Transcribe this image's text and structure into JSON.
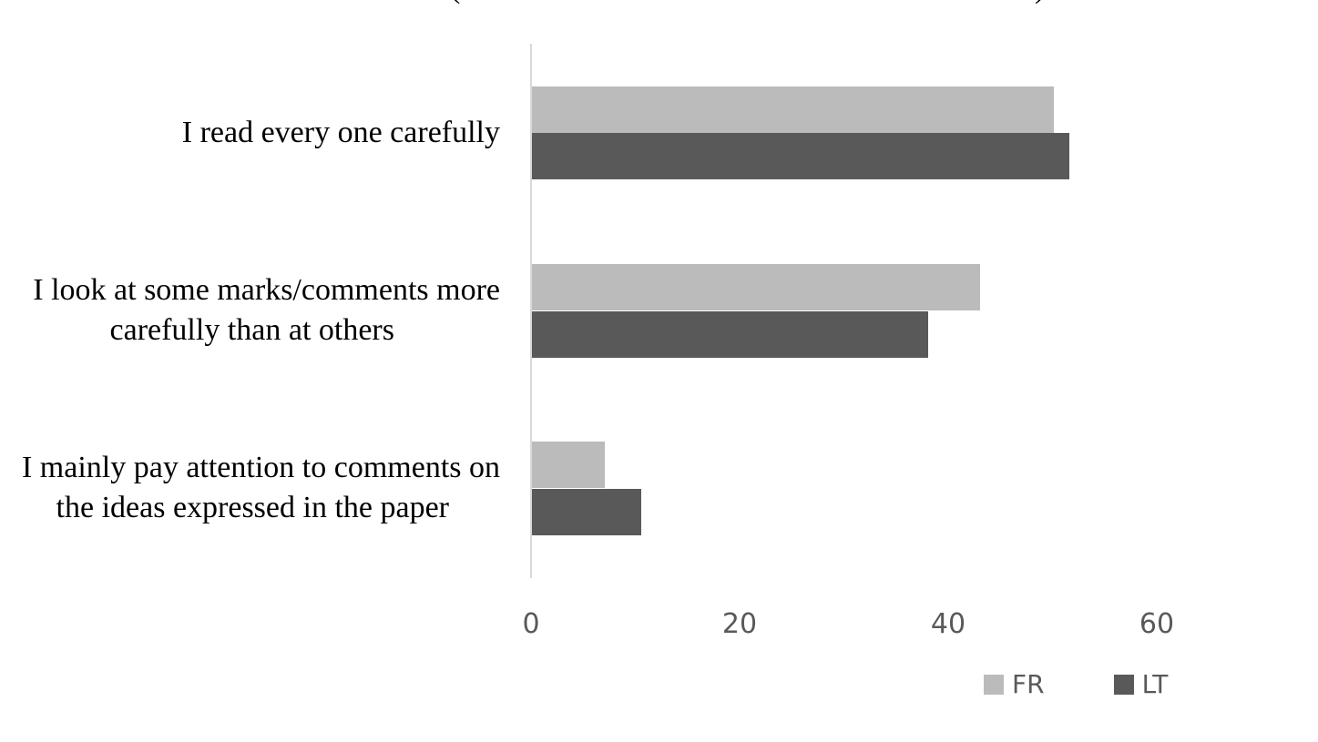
{
  "title": {
    "visible_fragment_left": "(",
    "visible_fragment_right": ")"
  },
  "colors": {
    "FR": "#bbbbbb",
    "LT": "#595959",
    "axis": "#d9d9d9",
    "tick_text": "#595959"
  },
  "categories": [
    {
      "lines": [
        "I read every one carefully"
      ]
    },
    {
      "lines": [
        "I look at some marks/comments more",
        "carefully than at others"
      ]
    },
    {
      "lines": [
        "I mainly pay attention to comments on",
        "the ideas expressed in the paper"
      ]
    }
  ],
  "x_ticks": [
    "0",
    "20",
    "40",
    "60"
  ],
  "legend": [
    {
      "label": "FR",
      "color": "#bbbbbb"
    },
    {
      "label": "LT",
      "color": "#595959"
    }
  ],
  "chart_data": {
    "type": "bar",
    "orientation": "horizontal",
    "title": "",
    "xlabel": "",
    "ylabel": "",
    "categories": [
      "I read every one carefully",
      "I look at some marks/comments more carefully than at others",
      "I mainly pay attention to comments on the ideas expressed in the paper"
    ],
    "series": [
      {
        "name": "FR",
        "values": [
          50,
          43,
          7
        ]
      },
      {
        "name": "LT",
        "values": [
          51.5,
          38,
          10.5
        ]
      }
    ],
    "xlim": [
      0,
      60
    ],
    "x_ticks": [
      0,
      20,
      40,
      60
    ],
    "grid": false,
    "legend_position": "bottom-right"
  }
}
